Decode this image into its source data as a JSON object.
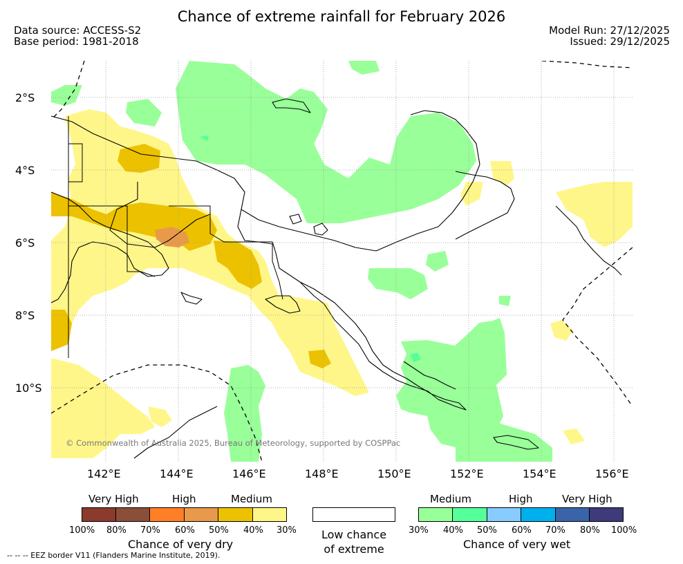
{
  "title": "Chance of extreme rainfall for February 2026",
  "meta": {
    "data_source": "Data source: ACCESS-S2",
    "base_period": "Base period: 1981-2018",
    "model_run": "Model Run: 27/12/2025",
    "issued": "Issued: 29/12/2025"
  },
  "map": {
    "lat_labels": [
      "2°S",
      "4°S",
      "6°S",
      "8°S",
      "10°S"
    ],
    "lon_labels": [
      "142°E",
      "144°E",
      "146°E",
      "148°E",
      "150°E",
      "152°E",
      "154°E",
      "156°E"
    ],
    "copyright": "© Commonwealth of Australia 2025, Bureau of Meteorology, supported by COSPPac"
  },
  "legend": {
    "dry": {
      "levels": [
        "Very High",
        "High",
        "Medium"
      ],
      "colors": [
        "#8b3a2e",
        "#8b4e38",
        "#ff7f27",
        "#e8994a",
        "#ecc200",
        "#fff68a"
      ],
      "pcts": [
        "100%",
        "80%",
        "70%",
        "60%",
        "50%",
        "40%",
        "30%"
      ],
      "caption": "Chance of very dry"
    },
    "none": {
      "caption_line1": "Low chance",
      "caption_line2": "of extreme",
      "color": "#ffffff"
    },
    "wet": {
      "levels": [
        "Medium",
        "High",
        "Very High"
      ],
      "colors": [
        "#99ff99",
        "#55ff99",
        "#88ccff",
        "#00b0ee",
        "#3a64a8",
        "#3f3a7a"
      ],
      "pcts": [
        "30%",
        "40%",
        "50%",
        "60%",
        "70%",
        "80%",
        "100%"
      ],
      "caption": "Chance of very wet"
    }
  },
  "footer": {
    "eez": "--  --  -- EEZ border V11 (Flanders Marine Institute, 2019)."
  }
}
